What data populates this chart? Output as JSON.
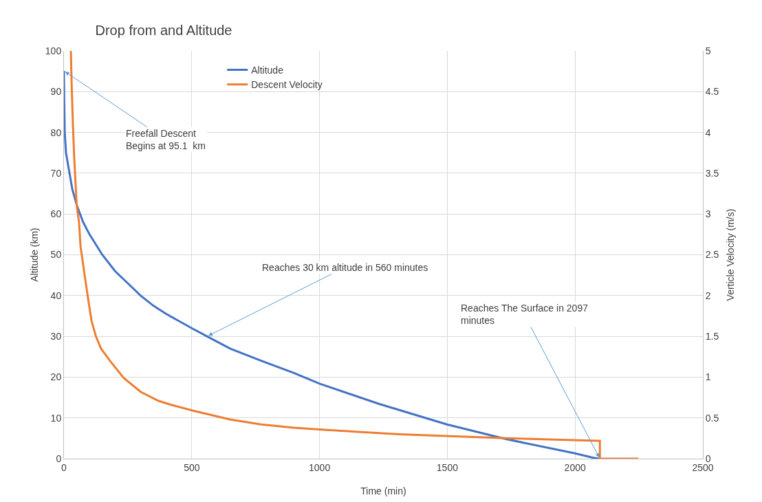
{
  "chart_data": {
    "type": "line",
    "title": "Drop from and Altitude",
    "xlabel": "Time (min)",
    "ylabel": "Altitude (km)",
    "y2label": "Verticle Velocity (m/s)",
    "xlim": [
      0,
      2500
    ],
    "xticks": [
      0,
      500,
      1000,
      1500,
      2000,
      2500
    ],
    "ylim": [
      0,
      100
    ],
    "yticks": [
      0,
      10,
      20,
      30,
      40,
      50,
      60,
      70,
      80,
      90,
      100
    ],
    "y2lim": [
      0,
      5
    ],
    "y2ticks": [
      0,
      0.5,
      1,
      1.5,
      2,
      2.5,
      3,
      3.5,
      4,
      4.5,
      5
    ],
    "grid": true,
    "legend": "top",
    "marker": "none",
    "line_style": "solid",
    "series": [
      {
        "name": "Altitude",
        "color": "#4472c4",
        "x": [
          0,
          1,
          3,
          8,
          19,
          33,
          51,
          75,
          100,
          150,
          200,
          250,
          300,
          350,
          400,
          500,
          560,
          650,
          772,
          900,
          1000,
          1230,
          1499,
          1730,
          2000,
          2072,
          2097
        ],
        "values": [
          95.1,
          88,
          80,
          75,
          71,
          66,
          62,
          58,
          55,
          50,
          46,
          43,
          40,
          37.5,
          35.5,
          32,
          30,
          27,
          24,
          21,
          18.4,
          13.5,
          8.4,
          4.8,
          1.3,
          0.2,
          0
        ]
      },
      {
        "name": "Descent Velocity",
        "color": "#ed7d31",
        "axis": "y2",
        "x": [
          27,
          30,
          35,
          40,
          50,
          59,
          65,
          81,
          95,
          108,
          125,
          145,
          180,
          234,
          300,
          369,
          420,
          503,
          650,
          772,
          900,
          1041,
          1311,
          1733,
          2091,
          2097,
          2097,
          2247
        ],
        "values": [
          5,
          4.6,
          4.1,
          3.7,
          3.1,
          2.9,
          2.6,
          2.25,
          1.95,
          1.69,
          1.5,
          1.35,
          1.2,
          0.99,
          0.82,
          0.71,
          0.66,
          0.59,
          0.48,
          0.42,
          0.38,
          0.35,
          0.3,
          0.25,
          0.22,
          0.22,
          0,
          0
        ]
      }
    ],
    "annotations": [
      {
        "text": "Freefall Descent\nBegins at 95.1  km",
        "x": 0,
        "y": 95.1
      },
      {
        "text": "Reaches 30 km altitude in 560 minutes",
        "x": 560,
        "y": 30
      },
      {
        "text": "Reaches The Surface in 2097\nminutes",
        "x": 2097,
        "y": 0
      }
    ]
  }
}
